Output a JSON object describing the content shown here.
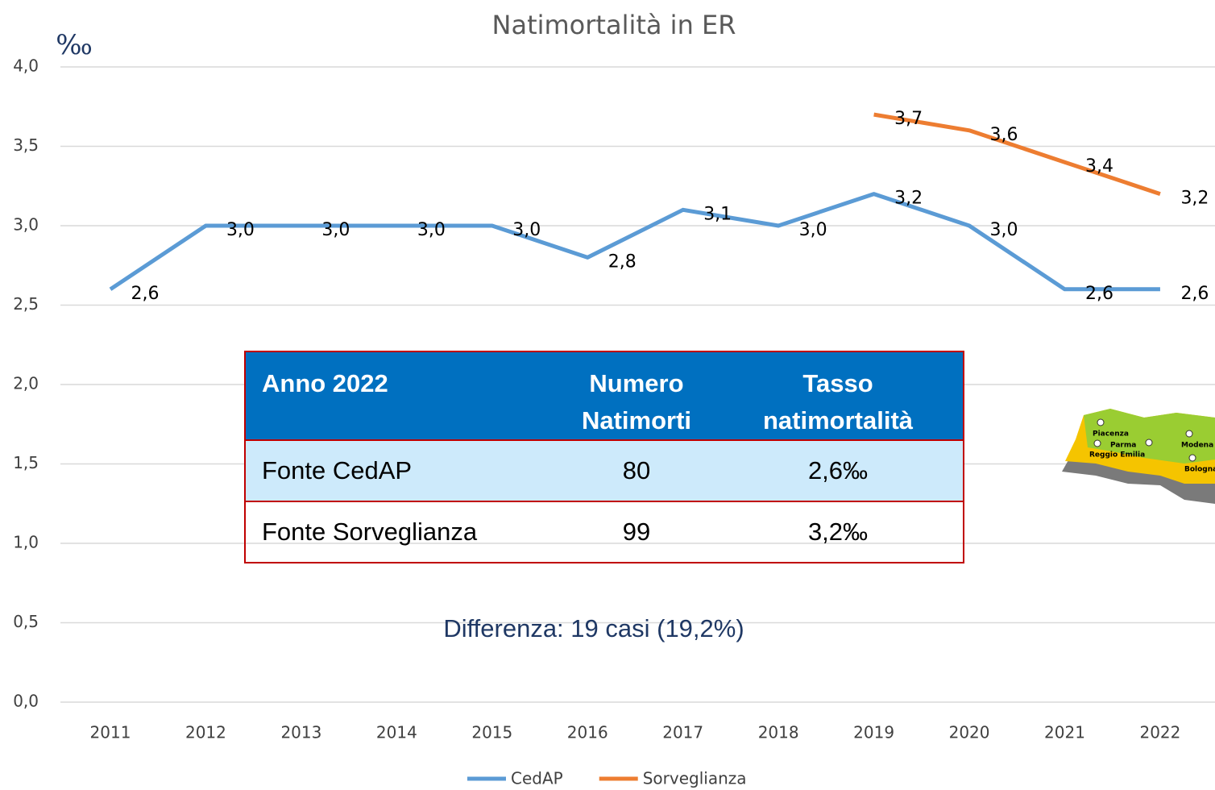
{
  "chart_data": {
    "type": "line",
    "title": "Natimortalità in ER",
    "y_label": "‰",
    "categories": [
      "2011",
      "2012",
      "2013",
      "2014",
      "2015",
      "2016",
      "2017",
      "2018",
      "2019",
      "2020",
      "2021",
      "2022"
    ],
    "series": [
      {
        "name": "CedAP",
        "color": "#5b9bd5",
        "values": [
          2.6,
          3.0,
          3.0,
          3.0,
          3.0,
          2.8,
          3.1,
          3.0,
          3.2,
          3.0,
          2.6,
          2.6
        ],
        "value_labels": [
          "2,6",
          "3,0",
          "3,0",
          "3,0",
          "3,0",
          "2,8",
          "3,1",
          "3,0",
          "3,2",
          "3,0",
          "2,6",
          "2,6"
        ]
      },
      {
        "name": "Sorveglianza",
        "color": "#ed7d31",
        "values": [
          null,
          null,
          null,
          null,
          null,
          null,
          null,
          null,
          3.7,
          3.6,
          3.4,
          3.2
        ],
        "value_labels": [
          null,
          null,
          null,
          null,
          null,
          null,
          null,
          null,
          "3,7",
          "3,6",
          "3,4",
          "3,2"
        ]
      }
    ],
    "ylim": [
      0,
      4
    ],
    "yticks": [
      {
        "value": 0,
        "label": "0,0"
      },
      {
        "value": 0.5,
        "label": "0,5"
      },
      {
        "value": 1,
        "label": "1,0"
      },
      {
        "value": 1.5,
        "label": "1,5"
      },
      {
        "value": 2,
        "label": "2,0"
      },
      {
        "value": 2.5,
        "label": "2,5"
      },
      {
        "value": 3,
        "label": "3,0"
      },
      {
        "value": 3.5,
        "label": "3,5"
      },
      {
        "value": 4,
        "label": "4,0"
      }
    ],
    "grid": true,
    "legend": "bottom"
  },
  "table": {
    "header": [
      "Anno 2022",
      "Numero Natimorti",
      "Tasso natimortalità"
    ],
    "rows": [
      [
        "Fonte CedAP",
        80,
        "2,6‰"
      ],
      [
        "Fonte Sorveglianza",
        99,
        "3,2‰"
      ]
    ]
  },
  "annotation": "Differenza: 19 casi (19,2%)",
  "map": {
    "labels": [
      "Piacenza",
      "Parma",
      "Reggio Emilia",
      "Modena",
      "Bologna"
    ]
  }
}
